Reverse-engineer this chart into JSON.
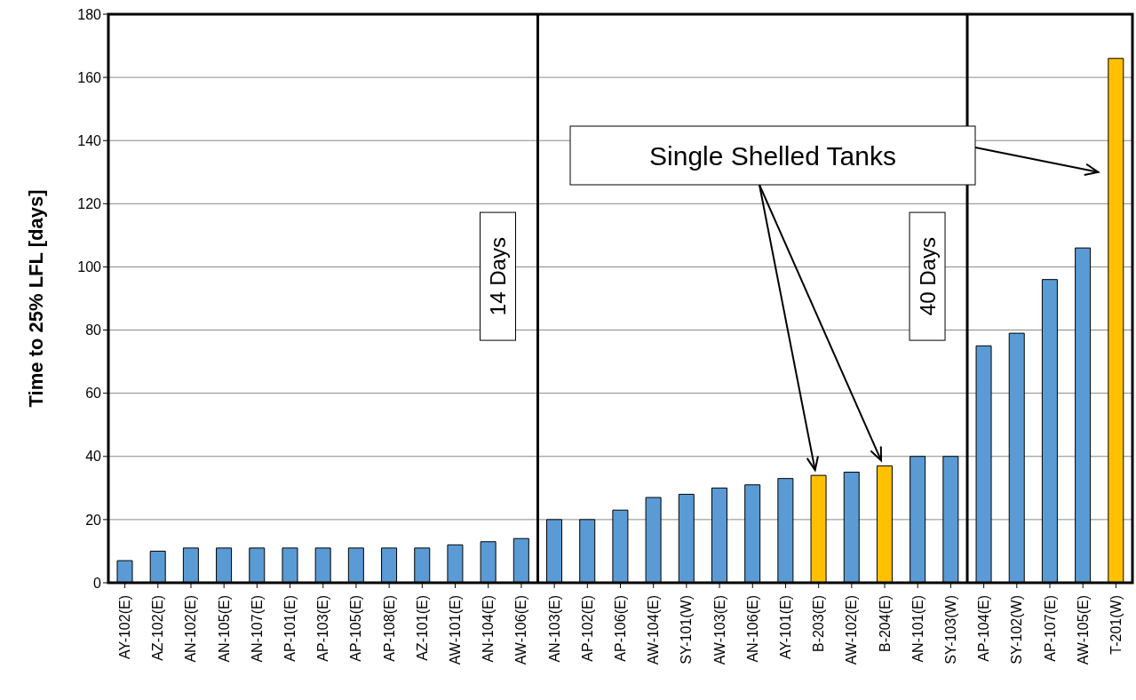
{
  "chart_data": {
    "type": "bar",
    "ylabel": "Time to 25% LFL [days]",
    "categories": [
      "AY-102(E)",
      "AZ-102(E)",
      "AN-102(E)",
      "AN-105(E)",
      "AN-107(E)",
      "AP-101(E)",
      "AP-103(E)",
      "AP-105(E)",
      "AP-108(E)",
      "AZ-101(E)",
      "AW-101(E)",
      "AN-104(E)",
      "AW-106(E)",
      "AN-103(E)",
      "AP-102(E)",
      "AP-106(E)",
      "AW-104(E)",
      "SY-101(W)",
      "AW-103(E)",
      "AN-106(E)",
      "AY-101(E)",
      "B-203(E)",
      "AW-102(E)",
      "B-204(E)",
      "AN-101(E)",
      "SY-103(W)",
      "AP-104(E)",
      "SY-102(W)",
      "AP-107(E)",
      "AW-105(E)",
      "T-201(W)"
    ],
    "values": [
      7,
      10,
      11,
      11,
      11,
      11,
      11,
      11,
      11,
      11,
      12,
      13,
      14,
      20,
      20,
      23,
      27,
      28,
      30,
      31,
      33,
      34,
      35,
      37,
      40,
      40,
      75,
      79,
      96,
      106,
      166
    ],
    "colors": [
      "#5b9bd5",
      "#5b9bd5",
      "#5b9bd5",
      "#5b9bd5",
      "#5b9bd5",
      "#5b9bd5",
      "#5b9bd5",
      "#5b9bd5",
      "#5b9bd5",
      "#5b9bd5",
      "#5b9bd5",
      "#5b9bd5",
      "#5b9bd5",
      "#5b9bd5",
      "#5b9bd5",
      "#5b9bd5",
      "#5b9bd5",
      "#5b9bd5",
      "#5b9bd5",
      "#5b9bd5",
      "#5b9bd5",
      "#ffc000",
      "#5b9bd5",
      "#ffc000",
      "#5b9bd5",
      "#5b9bd5",
      "#5b9bd5",
      "#5b9bd5",
      "#5b9bd5",
      "#5b9bd5",
      "#ffc000"
    ],
    "ylim": [
      0,
      180
    ],
    "yticks": [
      0,
      20,
      40,
      60,
      80,
      100,
      120,
      140,
      160,
      180
    ],
    "grid": "y",
    "legend": false,
    "annotations": [
      "14 Days",
      "40 Days",
      "Single Shelled Tanks"
    ]
  }
}
